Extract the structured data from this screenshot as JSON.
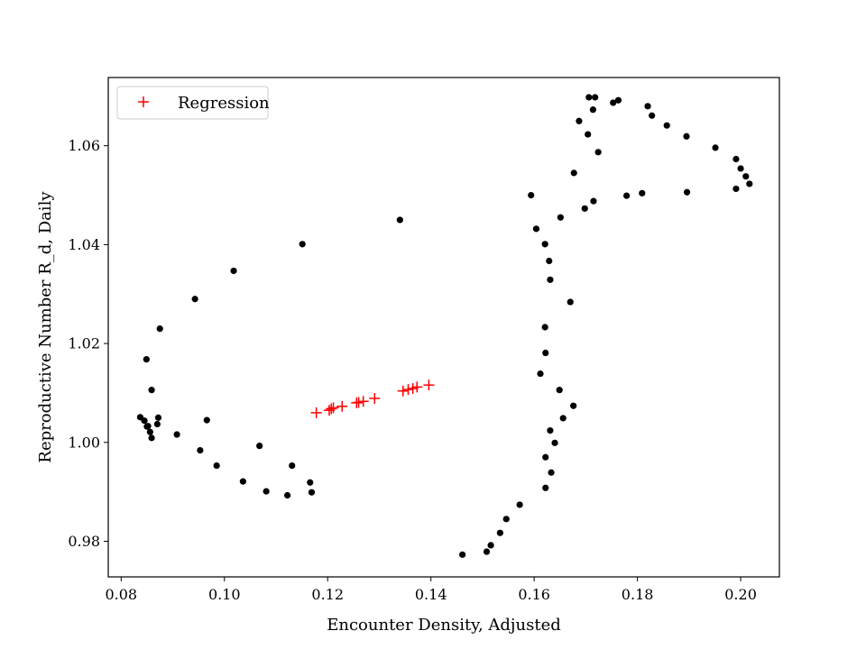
{
  "chart_data": {
    "type": "scatter",
    "title": "",
    "xlabel": "Encounter Density, Adjusted",
    "ylabel": "Reproductive Number R_d, Daily",
    "xlim": [
      0.0775,
      0.2075
    ],
    "ylim": [
      0.9728,
      1.0738
    ],
    "x_ticks": [
      0.08,
      0.1,
      0.12,
      0.14,
      0.16,
      0.18,
      0.2
    ],
    "x_tick_labels": [
      "0.08",
      "0.10",
      "0.12",
      "0.14",
      "0.16",
      "0.18",
      "0.20"
    ],
    "y_ticks": [
      0.98,
      1.0,
      1.02,
      1.04,
      1.06
    ],
    "y_tick_labels": [
      "0.98",
      "1.00",
      "1.02",
      "1.04",
      "1.06"
    ],
    "grid": false,
    "legend_position": "top-left",
    "series": [
      {
        "name": "",
        "marker": "dot",
        "color": "#000000",
        "x": [
          0.0837,
          0.0845,
          0.0852,
          0.0856,
          0.0859,
          0.087,
          0.0872,
          0.0849,
          0.0859,
          0.085,
          0.0875,
          0.0908,
          0.0943,
          0.0953,
          0.0966,
          0.0985,
          0.1018,
          0.1036,
          0.1068,
          0.1081,
          0.1122,
          0.1131,
          0.1151,
          0.1166,
          0.1169,
          0.134,
          0.1461,
          0.1508,
          0.1516,
          0.1534,
          0.1546,
          0.1572,
          0.1594,
          0.1604,
          0.1612,
          0.1621,
          0.1621,
          0.1622,
          0.1622,
          0.1622,
          0.1629,
          0.1631,
          0.1631,
          0.1633,
          0.164,
          0.1649,
          0.1651,
          0.1656,
          0.167,
          0.1676,
          0.1677,
          0.1687,
          0.1698,
          0.1704,
          0.1706,
          0.1714,
          0.1715,
          0.1718,
          0.1724,
          0.1753,
          0.1763,
          0.1779,
          0.1809,
          0.182,
          0.1828,
          0.1857,
          0.1895,
          0.1896,
          0.1951,
          0.1991,
          0.1991,
          0.2,
          0.201,
          0.2017
        ],
        "y": [
          1.0051,
          1.0044,
          1.0033,
          1.0021,
          1.0009,
          1.0037,
          1.005,
          1.0168,
          1.0106,
          1.0032,
          1.023,
          1.0016,
          1.029,
          0.9984,
          1.0045,
          0.9953,
          1.0347,
          0.9921,
          0.9993,
          0.9901,
          0.9893,
          0.9953,
          1.0401,
          0.9919,
          0.9899,
          1.045,
          0.9773,
          0.9779,
          0.9792,
          0.9817,
          0.9845,
          0.9874,
          1.05,
          1.0432,
          1.0139,
          1.0401,
          1.0233,
          1.0181,
          0.9908,
          0.997,
          1.0367,
          1.0329,
          1.0024,
          0.9939,
          0.9999,
          1.0106,
          1.0455,
          1.0049,
          1.0284,
          1.0074,
          1.0545,
          1.065,
          1.0473,
          1.0623,
          1.0698,
          1.0673,
          1.0488,
          1.0698,
          1.0587,
          1.0687,
          1.0692,
          1.0499,
          1.0504,
          1.068,
          1.0661,
          1.0641,
          1.0619,
          1.0506,
          1.0596,
          1.0573,
          1.0513,
          1.0554,
          1.0538,
          1.0523
        ]
      },
      {
        "name": "Regression",
        "marker": "plus",
        "color": "#ff0000",
        "x": [
          0.1178,
          0.1203,
          0.1207,
          0.1211,
          0.1228,
          0.1256,
          0.126,
          0.1269,
          0.1291,
          0.1346,
          0.1356,
          0.1365,
          0.1373,
          0.1396
        ],
        "y": [
          1.006,
          1.0065,
          1.0068,
          1.007,
          1.0073,
          1.008,
          1.0081,
          1.0083,
          1.0089,
          1.0104,
          1.0107,
          1.0109,
          1.0112,
          1.0116
        ]
      }
    ]
  }
}
